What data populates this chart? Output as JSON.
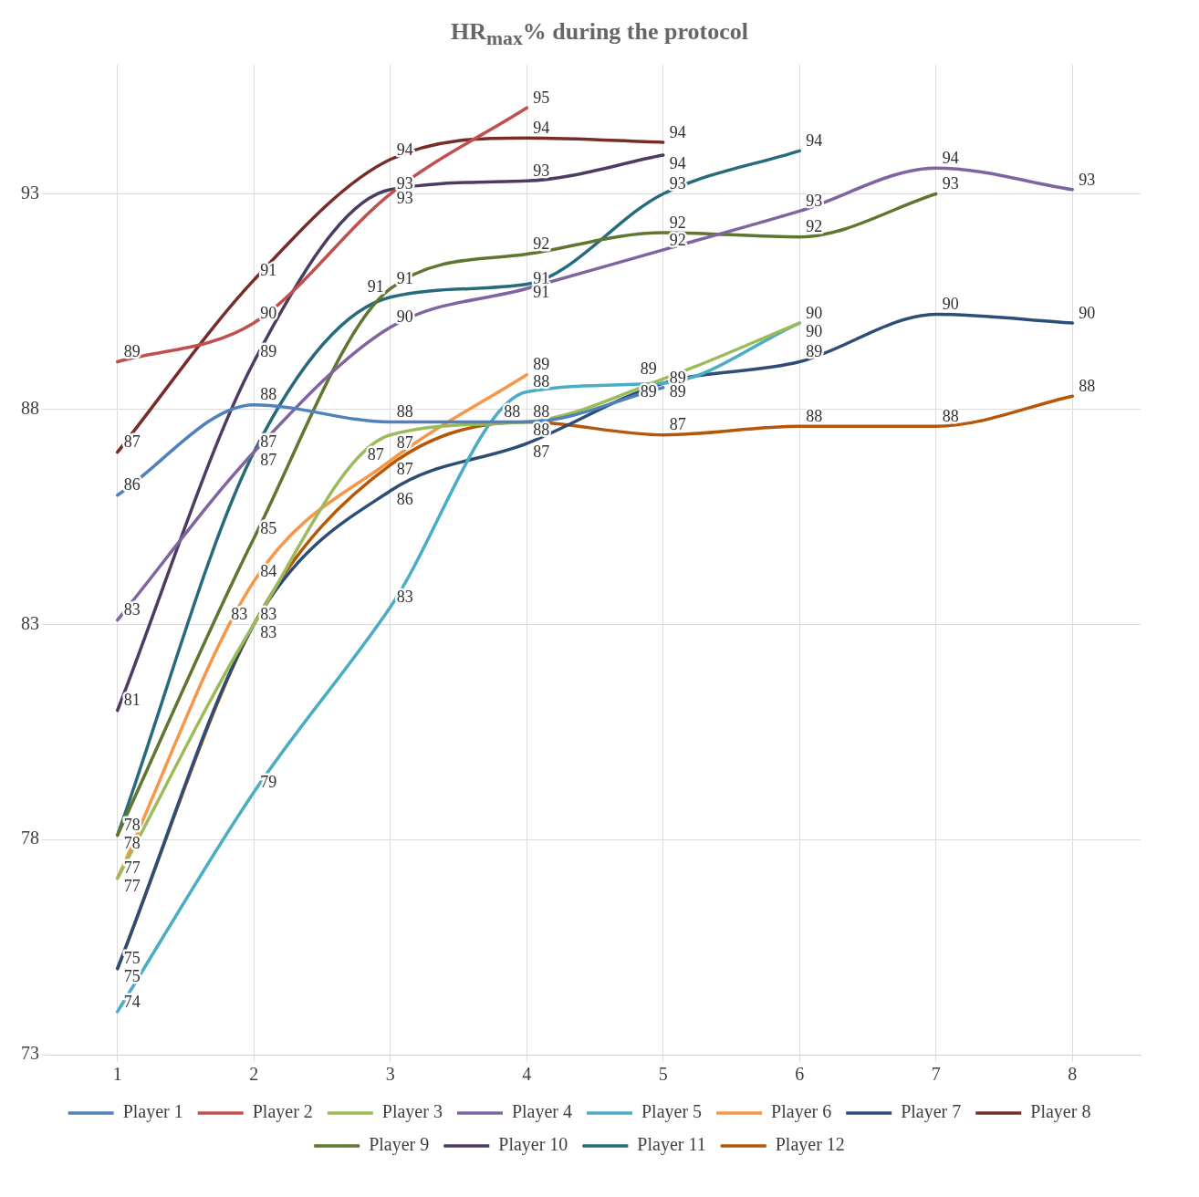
{
  "chart_data": {
    "type": "line",
    "title": "HR$_{max}$% during the protocol",
    "categories": [
      "1",
      "2",
      "3",
      "4",
      "5",
      "6",
      "7",
      "8"
    ],
    "ylim": [
      73,
      96
    ],
    "yticks": [
      73,
      78,
      83,
      88,
      93
    ],
    "grid": true,
    "legend": "bottom",
    "marker": "none",
    "line_style": "solid",
    "series": [
      {
        "name": "Player 1",
        "color": "#4f81bd",
        "values": [
          86.0,
          88.1,
          87.7,
          87.7,
          88.5,
          null,
          null,
          null
        ],
        "value_labels": [
          "86",
          "88",
          "88",
          "88",
          "89",
          null,
          null,
          null
        ]
      },
      {
        "name": "Player 2",
        "color": "#c0504d",
        "values": [
          89.1,
          90.0,
          93.0,
          95.0,
          null,
          null,
          null,
          null
        ],
        "value_labels": [
          "89",
          "90",
          "93",
          "95",
          null,
          null,
          null,
          null
        ]
      },
      {
        "name": "Player 3",
        "color": "#9bbb59",
        "values": [
          77.1,
          83.0,
          87.4,
          87.7,
          88.7,
          90.0,
          null,
          null
        ],
        "value_labels": [
          "77",
          "83",
          "87",
          "88",
          "89",
          "90",
          null,
          null
        ]
      },
      {
        "name": "Player 4",
        "color": "#8064a2",
        "values": [
          83.1,
          87.0,
          89.9,
          90.8,
          91.7,
          92.6,
          93.6,
          93.1
        ],
        "value_labels": [
          "83",
          "87",
          "90",
          "91",
          "92",
          "93",
          "94",
          "93"
        ]
      },
      {
        "name": "Player 5",
        "color": "#4bacc6",
        "values": [
          74.0,
          79.1,
          83.4,
          88.4,
          88.6,
          90.0,
          null,
          null
        ],
        "value_labels": [
          "74",
          "79",
          "83",
          "88",
          "89",
          "90",
          null,
          null
        ]
      },
      {
        "name": "Player 6",
        "color": "#f79646",
        "values": [
          77.1,
          84.0,
          86.8,
          88.8,
          null,
          null,
          null,
          null
        ],
        "value_labels": [
          "77",
          "84",
          "87",
          "89",
          null,
          null,
          null,
          null
        ]
      },
      {
        "name": "Player 7",
        "color": "#2c4d75",
        "values": [
          75.0,
          83.0,
          86.1,
          87.2,
          88.6,
          89.1,
          90.2,
          90.0
        ],
        "value_labels": [
          "75",
          "83",
          "86",
          "87",
          "89",
          "89",
          "90",
          "90"
        ]
      },
      {
        "name": "Player 8",
        "color": "#772c2a",
        "values": [
          87.0,
          91.0,
          93.8,
          94.3,
          94.2,
          null,
          null,
          null
        ],
        "value_labels": [
          "87",
          "91",
          "94",
          "94",
          "94",
          null,
          null,
          null
        ]
      },
      {
        "name": "Player 9",
        "color": "#5f7530",
        "values": [
          78.1,
          85.0,
          90.8,
          91.6,
          92.1,
          92.0,
          93.0,
          null
        ],
        "value_labels": [
          "78",
          "85",
          "91",
          "92",
          "92",
          "92",
          "93",
          null
        ]
      },
      {
        "name": "Player 10",
        "color": "#4d3b62",
        "values": [
          81.0,
          89.1,
          93.1,
          93.3,
          93.9,
          null,
          null,
          null
        ],
        "value_labels": [
          "81",
          "89",
          "93",
          "93",
          "94",
          null,
          null,
          null
        ]
      },
      {
        "name": "Player 11",
        "color": "#276a7c",
        "values": [
          78.1,
          87.0,
          90.6,
          90.9,
          93.0,
          94.0,
          null,
          null
        ],
        "value_labels": [
          "78",
          "87",
          "91",
          "91",
          "93",
          "94",
          null,
          null
        ]
      },
      {
        "name": "Player 12",
        "color": "#b65708",
        "values": [
          75.0,
          83.0,
          86.7,
          87.7,
          87.4,
          87.6,
          87.6,
          88.3
        ],
        "value_labels": [
          "75",
          "83",
          "87",
          "88",
          "87",
          "88",
          "88",
          "88"
        ]
      }
    ]
  }
}
